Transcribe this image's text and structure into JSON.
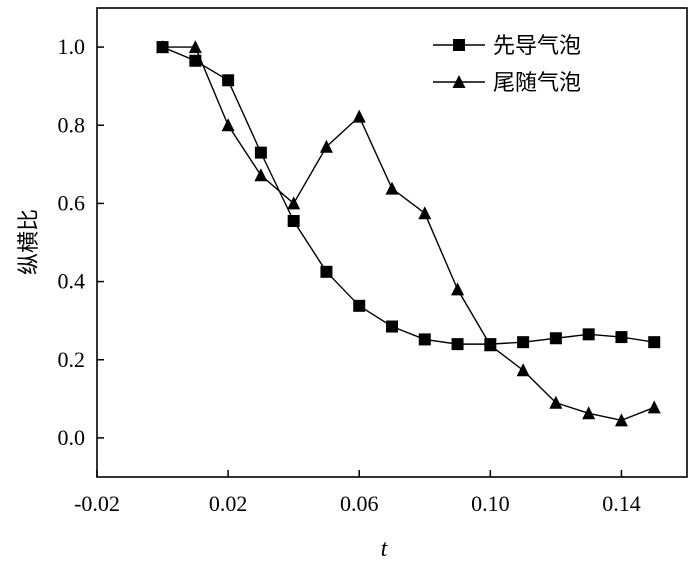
{
  "chart_data": {
    "type": "line",
    "title": "",
    "xlabel": "t",
    "ylabel": "纵横比",
    "xlim": [
      -0.02,
      0.16
    ],
    "ylim": [
      -0.1,
      1.1
    ],
    "x_ticks": [
      -0.02,
      0.02,
      0.06,
      0.1,
      0.14
    ],
    "x_tick_labels": [
      "-0.02",
      "0.02",
      "0.06",
      "0.10",
      "0.14"
    ],
    "y_ticks": [
      0.0,
      0.2,
      0.4,
      0.6,
      0.8,
      1.0
    ],
    "y_tick_labels": [
      "0.0",
      "0.2",
      "0.4",
      "0.6",
      "0.8",
      "1.0"
    ],
    "grid": false,
    "legend_position": "top-right",
    "series": [
      {
        "name": "先导气泡",
        "marker": "square",
        "color": "#000000",
        "x": [
          0.0,
          0.01,
          0.02,
          0.03,
          0.04,
          0.05,
          0.06,
          0.07,
          0.08,
          0.09,
          0.1,
          0.11,
          0.12,
          0.13,
          0.14,
          0.15
        ],
        "y": [
          1.0,
          0.965,
          0.915,
          0.73,
          0.555,
          0.425,
          0.338,
          0.285,
          0.252,
          0.24,
          0.24,
          0.245,
          0.255,
          0.265,
          0.258,
          0.245
        ]
      },
      {
        "name": "尾随气泡",
        "marker": "triangle",
        "color": "#000000",
        "x": [
          0.0,
          0.01,
          0.02,
          0.03,
          0.04,
          0.05,
          0.06,
          0.07,
          0.08,
          0.09,
          0.1,
          0.11,
          0.12,
          0.13,
          0.14,
          0.15
        ],
        "y": [
          1.0,
          1.0,
          0.8,
          0.672,
          0.6,
          0.745,
          0.822,
          0.638,
          0.575,
          0.38,
          0.237,
          0.173,
          0.09,
          0.063,
          0.045,
          0.078
        ]
      }
    ]
  }
}
